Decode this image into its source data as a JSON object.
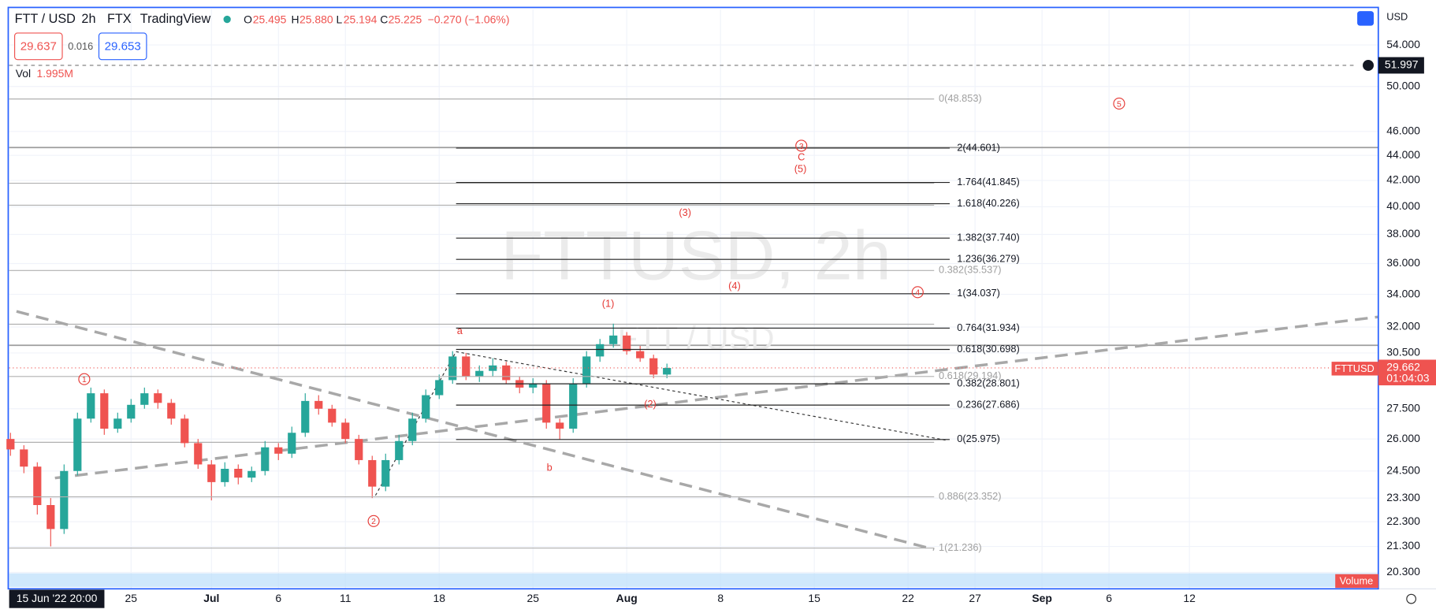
{
  "header": {
    "symbol": "FTT / USD",
    "interval": "2h",
    "exchange": "FTX",
    "source": "TradingView",
    "open_label": "O",
    "open": "25.495",
    "high_label": "H",
    "high": "25.880",
    "low_label": "L",
    "low": "25.194",
    "close_label": "C",
    "close": "25.225",
    "change": "−0.270 (−1.06%)"
  },
  "trade": {
    "sell": "29.637",
    "spread": "0.016",
    "buy": "29.653"
  },
  "volume_legend": {
    "label": "Vol",
    "value": "1.995M"
  },
  "watermark": {
    "main": "FTTUSD, 2h",
    "sub": "FTT / USD"
  },
  "price_axis": {
    "currency": "USD",
    "symbol_tag": "FTTUSD",
    "countdown": "01:04:03",
    "volume_tag": "Volume"
  },
  "time_axis": {
    "crosshair_time": "15 Jun '22 20:00"
  },
  "chart_data": {
    "type": "candlestick",
    "log_scale": true,
    "ylim": [
      19.69,
      57.7
    ],
    "xlim": [
      166.9,
      269.1
    ],
    "yticks": [
      {
        "value": 54,
        "label": "54.000"
      },
      {
        "value": 50,
        "label": "50.000"
      },
      {
        "value": 46,
        "label": "46.000"
      },
      {
        "value": 44,
        "label": "44.000"
      },
      {
        "value": 42,
        "label": "42.000"
      },
      {
        "value": 40,
        "label": "40.000"
      },
      {
        "value": 38,
        "label": "38.000"
      },
      {
        "value": 36,
        "label": "36.000"
      },
      {
        "value": 34,
        "label": "34.000"
      },
      {
        "value": 32,
        "label": "32.000"
      },
      {
        "value": 30.5,
        "label": "30.500"
      },
      {
        "value": 27.5,
        "label": "27.500"
      },
      {
        "value": 26,
        "label": "26.000"
      },
      {
        "value": 24.5,
        "label": "24.500"
      },
      {
        "value": 23.3,
        "label": "23.300"
      },
      {
        "value": 22.3,
        "label": "22.300"
      },
      {
        "value": 21.3,
        "label": "21.300"
      },
      {
        "value": 20.3,
        "label": "20.300"
      }
    ],
    "xticks": [
      {
        "value": 176,
        "label": "25"
      },
      {
        "value": 182,
        "label": "Jul"
      },
      {
        "value": 187,
        "label": "6"
      },
      {
        "value": 192,
        "label": "11"
      },
      {
        "value": 199,
        "label": "18"
      },
      {
        "value": 206,
        "label": "25"
      },
      {
        "value": 213,
        "label": "Aug"
      },
      {
        "value": 220,
        "label": "8"
      },
      {
        "value": 227,
        "label": "15"
      },
      {
        "value": 234,
        "label": "22"
      },
      {
        "value": 239,
        "label": "27"
      },
      {
        "value": 244,
        "label": "Sep"
      },
      {
        "value": 249,
        "label": "6"
      },
      {
        "value": 255,
        "label": "12"
      }
    ],
    "x": [
      167,
      168,
      169,
      170,
      171,
      172,
      173,
      174,
      175,
      176,
      177,
      178,
      179,
      180,
      181,
      182,
      183,
      184,
      185,
      186,
      187,
      188,
      189,
      190,
      191,
      192,
      193,
      194,
      195,
      196,
      197,
      198,
      199,
      200,
      201,
      202,
      203,
      204,
      205,
      206,
      207,
      208,
      209,
      210,
      211,
      212,
      213,
      214,
      215,
      216
    ],
    "open": [
      26.0,
      25.5,
      24.7,
      23.0,
      22.0,
      24.5,
      27.0,
      28.3,
      26.5,
      27.0,
      27.7,
      28.3,
      27.8,
      27.0,
      25.8,
      24.8,
      24.0,
      24.6,
      24.2,
      24.5,
      25.6,
      25.3,
      26.3,
      27.9,
      27.5,
      26.8,
      26.0,
      25.0,
      23.8,
      25.0,
      25.9,
      27.0,
      28.2,
      29.0,
      30.3,
      29.2,
      29.5,
      29.8,
      29.0,
      28.6,
      28.8,
      26.8,
      26.5,
      28.8,
      30.3,
      31.0,
      31.5,
      30.6,
      30.2,
      29.3
    ],
    "high": [
      26.3,
      25.7,
      24.9,
      23.3,
      24.8,
      27.3,
      28.6,
      28.5,
      27.3,
      28.0,
      28.6,
      28.5,
      28.0,
      27.2,
      26.0,
      25.0,
      24.9,
      24.8,
      24.7,
      25.9,
      25.8,
      26.6,
      28.3,
      28.2,
      27.7,
      27.0,
      26.2,
      25.2,
      25.3,
      26.2,
      27.3,
      28.5,
      29.3,
      30.6,
      30.5,
      29.8,
      30.2,
      30.0,
      29.2,
      29.1,
      29.0,
      27.0,
      29.1,
      30.6,
      31.3,
      32.2,
      31.7,
      30.9,
      30.4,
      29.9
    ],
    "low": [
      25.2,
      24.4,
      22.6,
      21.3,
      21.8,
      24.3,
      26.8,
      26.2,
      26.3,
      26.8,
      27.5,
      27.5,
      26.7,
      25.6,
      24.6,
      23.2,
      23.8,
      23.9,
      24.0,
      24.3,
      25.0,
      25.1,
      26.1,
      27.2,
      26.6,
      25.8,
      24.8,
      23.3,
      23.6,
      24.8,
      25.7,
      26.8,
      28.0,
      28.8,
      29.0,
      28.9,
      29.2,
      28.8,
      28.3,
      28.3,
      26.5,
      25.98,
      26.3,
      28.6,
      30.0,
      30.8,
      30.4,
      30.0,
      29.1,
      29.1
    ],
    "close": [
      25.5,
      24.7,
      23.0,
      22.0,
      24.5,
      27.0,
      28.3,
      26.5,
      27.0,
      27.7,
      28.3,
      27.8,
      27.0,
      25.8,
      24.8,
      24.0,
      24.6,
      24.2,
      24.5,
      25.6,
      25.3,
      26.3,
      27.9,
      27.5,
      26.8,
      26.0,
      25.0,
      23.8,
      25.0,
      25.9,
      27.0,
      28.2,
      29.0,
      30.3,
      29.2,
      29.5,
      29.8,
      29.0,
      28.6,
      28.8,
      26.8,
      26.5,
      28.8,
      30.3,
      31.0,
      31.5,
      30.6,
      30.2,
      29.3,
      29.66
    ],
    "up_color": "#26a69a",
    "down_color": "#ef5350",
    "last_price": 29.662,
    "crosshair_price": 51.997,
    "fib_retracement": [
      {
        "value": 48.853,
        "label": "0(48.853)"
      },
      {
        "value": 35.537,
        "label": "0.382(35.537)"
      },
      {
        "value": 29.194,
        "label": "0.618(29.194)"
      },
      {
        "value": 23.352,
        "label": "0.886(23.352)"
      },
      {
        "value": 21.236,
        "label": "1(21.236)"
      }
    ],
    "fib_extension": [
      {
        "value": 44.601,
        "label": "2(44.601)"
      },
      {
        "value": 41.845,
        "label": "1.764(41.845)"
      },
      {
        "value": 40.226,
        "label": "1.618(40.226)"
      },
      {
        "value": 37.74,
        "label": "1.382(37.740)"
      },
      {
        "value": 36.279,
        "label": "1.236(36.279)"
      },
      {
        "value": 34.037,
        "label": "1(34.037)"
      },
      {
        "value": 31.934,
        "label": "0.764(31.934)"
      },
      {
        "value": 30.698,
        "label": "0.618(30.698)"
      },
      {
        "value": 28.801,
        "label": "0.382(28.801)"
      },
      {
        "value": 27.686,
        "label": "0.236(27.686)"
      },
      {
        "value": 25.975,
        "label": "0(25.975)"
      }
    ],
    "wave_labels": [
      "1",
      "2",
      "a",
      "b",
      "(1)",
      "(2)",
      "(3)",
      "(4)",
      "3",
      "C",
      "(5)",
      "4",
      "5"
    ]
  }
}
